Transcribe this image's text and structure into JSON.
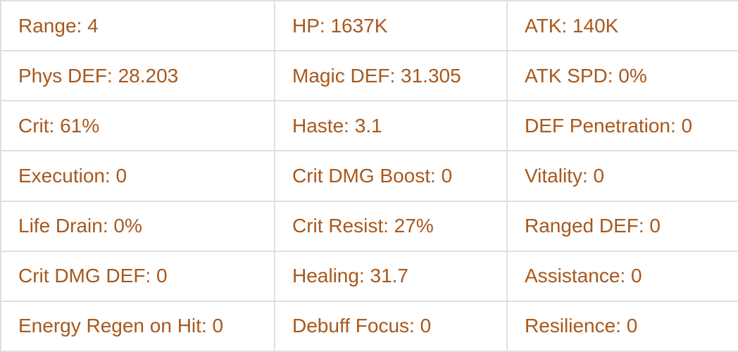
{
  "colors": {
    "stat_text": "#a8581c",
    "table_border": "#e0e0e0",
    "background": "#ffffff"
  },
  "table": {
    "rows": [
      {
        "cells": [
          "Range: 4",
          "HP: 1637K",
          "ATK: 140K"
        ]
      },
      {
        "cells": [
          "Phys DEF: 28.203",
          "Magic DEF: 31.305",
          "ATK SPD: 0%"
        ]
      },
      {
        "cells": [
          "Crit: 61%",
          "Haste: 3.1",
          "DEF Penetration: 0"
        ]
      },
      {
        "cells": [
          "Execution: 0",
          "Crit DMG Boost: 0",
          "Vitality: 0"
        ]
      },
      {
        "cells": [
          "Life Drain: 0%",
          "Crit Resist: 27%",
          "Ranged DEF: 0"
        ]
      },
      {
        "cells": [
          "Crit DMG DEF: 0",
          "Healing: 31.7",
          "Assistance: 0"
        ]
      },
      {
        "cells": [
          "Energy Regen on Hit: 0",
          "Debuff Focus: 0",
          "Resilience: 0"
        ]
      }
    ]
  }
}
